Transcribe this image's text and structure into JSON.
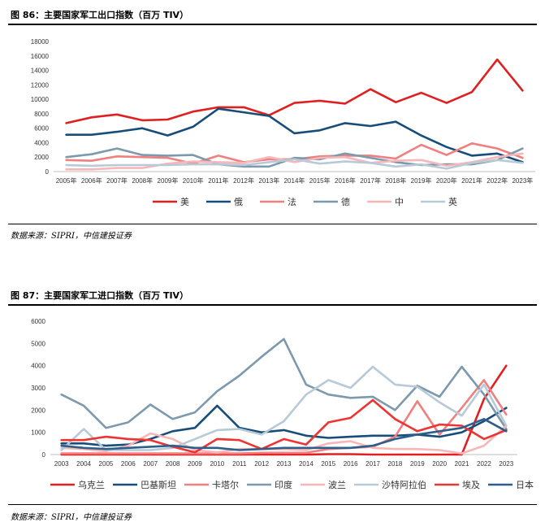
{
  "figures": [
    {
      "title": "图 86：主要国家军工出口指数（百万 TIV）",
      "source": "数据来源：SIPRI，中信建投证券"
    },
    {
      "title": "图 87：主要国家军工进口指数（百万 TIV）",
      "source": "数据来源：SIPRI，中信建投证券"
    }
  ],
  "chart_data": [
    {
      "type": "line",
      "title": "",
      "xlabel": "",
      "ylabel": "",
      "ylim": [
        0,
        18000
      ],
      "yticks": [
        0,
        2000,
        4000,
        6000,
        8000,
        10000,
        12000,
        14000,
        16000,
        18000
      ],
      "grid": false,
      "legend": "bottom",
      "x": [
        "2005年",
        "2006年",
        "2007年",
        "2008年",
        "2009年",
        "2010年",
        "2011年",
        "2012年",
        "2013年",
        "2014年",
        "2015年",
        "2016年",
        "2017年",
        "2018年",
        "2019年",
        "2020年",
        "2021年",
        "2022年",
        "2023年"
      ],
      "series": [
        {
          "name": "美",
          "color": "#e02020",
          "values": [
            6700,
            7500,
            7900,
            7100,
            7200,
            8300,
            8900,
            8900,
            7800,
            9500,
            9800,
            9400,
            11400,
            9600,
            10900,
            9500,
            11000,
            15500,
            11200
          ]
        },
        {
          "name": "俄",
          "color": "#184d7a",
          "values": [
            5100,
            5100,
            5500,
            6000,
            5000,
            6200,
            8700,
            8200,
            7700,
            5300,
            5700,
            6700,
            6300,
            6900,
            5000,
            3400,
            2200,
            2500,
            1300
          ]
        },
        {
          "name": "法",
          "color": "#f08080",
          "values": [
            1600,
            1500,
            2100,
            2000,
            1900,
            1100,
            2200,
            1300,
            1700,
            1700,
            2100,
            2200,
            2200,
            1800,
            3700,
            2300,
            3900,
            3200,
            1900
          ]
        },
        {
          "name": "德",
          "color": "#7d99ad",
          "values": [
            2000,
            2400,
            3200,
            2300,
            2200,
            2300,
            1000,
            700,
            700,
            1900,
            1700,
            2500,
            1900,
            1300,
            900,
            1000,
            1000,
            1600,
            3200
          ]
        },
        {
          "name": "中",
          "color": "#f7b6b8",
          "values": [
            300,
            300,
            500,
            500,
            1100,
            1400,
            1300,
            1200,
            2000,
            1300,
            1900,
            2000,
            1200,
            1500,
            1600,
            800,
            1300,
            2000,
            2500
          ]
        },
        {
          "name": "英",
          "color": "#b8c9d8",
          "values": [
            900,
            800,
            900,
            900,
            900,
            1000,
            1000,
            900,
            1300,
            1700,
            1100,
            1400,
            1200,
            700,
            1000,
            400,
            1200,
            1600,
            1200
          ]
        }
      ]
    },
    {
      "type": "line",
      "title": "",
      "xlabel": "",
      "ylabel": "",
      "ylim": [
        0,
        6000
      ],
      "yticks": [
        0,
        1000,
        2000,
        3000,
        4000,
        5000,
        6000
      ],
      "grid": false,
      "legend": "bottom",
      "x": [
        "2003",
        "2004",
        "2005",
        "2006",
        "2007",
        "2008",
        "2009",
        "2010",
        "2011",
        "2012",
        "2013",
        "2014",
        "2015",
        "2016",
        "2017",
        "2018",
        "2019",
        "2020",
        "2021",
        "2022",
        "2023"
      ],
      "series": [
        {
          "name": "乌克兰",
          "color": "#e02020",
          "values": [
            0,
            0,
            0,
            0,
            0,
            0,
            0,
            0,
            0,
            0,
            0,
            0,
            20,
            20,
            0,
            0,
            0,
            0,
            0,
            2500,
            4000
          ]
        },
        {
          "name": "巴基斯坦",
          "color": "#184d7a",
          "values": [
            500,
            500,
            400,
            450,
            700,
            1050,
            1200,
            2200,
            1200,
            1000,
            1100,
            850,
            750,
            800,
            850,
            850,
            900,
            800,
            1000,
            1500,
            2100
          ]
        },
        {
          "name": "卡塔尔",
          "color": "#f08080",
          "values": [
            50,
            50,
            50,
            50,
            50,
            50,
            50,
            50,
            50,
            80,
            80,
            80,
            250,
            300,
            350,
            800,
            2400,
            900,
            2100,
            3350,
            1800
          ]
        },
        {
          "name": "印度",
          "color": "#7d99ad",
          "values": [
            2700,
            2200,
            1200,
            1450,
            2250,
            1600,
            1900,
            2850,
            3550,
            4400,
            5200,
            3150,
            2700,
            2550,
            2600,
            2000,
            3100,
            2600,
            3950,
            2700,
            1150
          ]
        },
        {
          "name": "波兰",
          "color": "#f7b6b8",
          "values": [
            300,
            250,
            150,
            400,
            950,
            700,
            200,
            100,
            250,
            250,
            250,
            200,
            500,
            600,
            300,
            250,
            250,
            200,
            50,
            400,
            1300
          ]
        },
        {
          "name": "沙特阿拉伯",
          "color": "#b8c9d8",
          "values": [
            200,
            1150,
            200,
            200,
            200,
            300,
            700,
            1100,
            1150,
            900,
            1500,
            2700,
            3350,
            3000,
            3950,
            3150,
            3050,
            2350,
            1750,
            3150,
            1300
          ]
        },
        {
          "name": "埃及",
          "color": "#ee3333",
          "values": [
            650,
            650,
            800,
            700,
            650,
            350,
            100,
            700,
            650,
            250,
            700,
            450,
            1450,
            1650,
            2450,
            1600,
            1050,
            1350,
            1300,
            700,
            1100
          ]
        },
        {
          "name": "日本",
          "color": "#2d5f8a",
          "values": [
            400,
            300,
            250,
            300,
            350,
            400,
            300,
            300,
            200,
            250,
            300,
            300,
            300,
            300,
            400,
            700,
            900,
            1050,
            1200,
            1600,
            1050
          ]
        }
      ]
    }
  ]
}
